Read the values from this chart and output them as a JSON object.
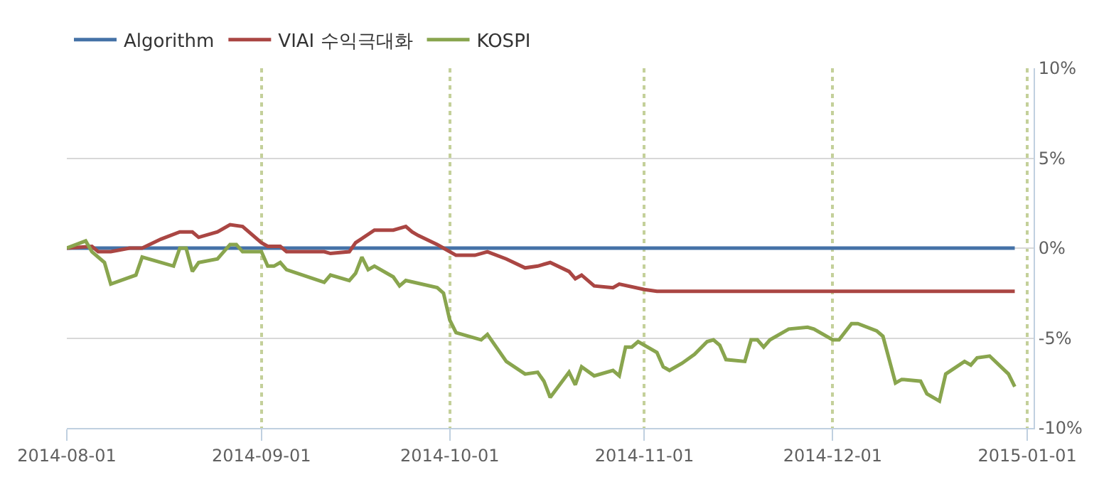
{
  "chart_data": {
    "type": "line",
    "series": [
      {
        "name": "Algorithm",
        "color": "#4572a7",
        "x": [
          "2014-08-01",
          "2014-12-30"
        ],
        "values": [
          0,
          0
        ]
      },
      {
        "name": "VIAI 수익극대화",
        "color": "#aa4643",
        "x": [
          "2014-08-01",
          "2014-08-05",
          "2014-08-06",
          "2014-08-08",
          "2014-08-11",
          "2014-08-13",
          "2014-08-16",
          "2014-08-19",
          "2014-08-21",
          "2014-08-22",
          "2014-08-25",
          "2014-08-27",
          "2014-08-29",
          "2014-09-01",
          "2014-09-02",
          "2014-09-04",
          "2014-09-05",
          "2014-09-11",
          "2014-09-12",
          "2014-09-15",
          "2014-09-16",
          "2014-09-19",
          "2014-09-22",
          "2014-09-23",
          "2014-09-24",
          "2014-09-25",
          "2014-09-26",
          "2014-09-29",
          "2014-09-30",
          "2014-10-02",
          "2014-10-05",
          "2014-10-07",
          "2014-10-10",
          "2014-10-13",
          "2014-10-15",
          "2014-10-17",
          "2014-10-20",
          "2014-10-21",
          "2014-10-22",
          "2014-10-24",
          "2014-10-27",
          "2014-10-28",
          "2014-11-01",
          "2014-11-03",
          "2014-12-30"
        ],
        "values": [
          0,
          0.1,
          -0.2,
          -0.2,
          0,
          0,
          0.5,
          0.9,
          0.9,
          0.6,
          0.9,
          1.3,
          1.2,
          0.3,
          0.1,
          0.1,
          -0.2,
          -0.2,
          -0.3,
          -0.2,
          0.3,
          1.0,
          1.0,
          1.1,
          1.2,
          0.9,
          0.7,
          0.2,
          0,
          -0.4,
          -0.4,
          -0.2,
          -0.6,
          -1.1,
          -1.0,
          -0.8,
          -1.3,
          -1.7,
          -1.5,
          -2.1,
          -2.2,
          -2.0,
          -2.3,
          -2.4,
          -2.4
        ]
      },
      {
        "name": "KOSPI",
        "color": "#89a54e",
        "x": [
          "2014-08-01",
          "2014-08-04",
          "2014-08-05",
          "2014-08-07",
          "2014-08-08",
          "2014-08-12",
          "2014-08-13",
          "2014-08-18",
          "2014-08-19",
          "2014-08-20",
          "2014-08-21",
          "2014-08-22",
          "2014-08-25",
          "2014-08-27",
          "2014-08-28",
          "2014-08-29",
          "2014-09-01",
          "2014-09-02",
          "2014-09-03",
          "2014-09-04",
          "2014-09-05",
          "2014-09-11",
          "2014-09-12",
          "2014-09-15",
          "2014-09-16",
          "2014-09-17",
          "2014-09-18",
          "2014-09-19",
          "2014-09-22",
          "2014-09-23",
          "2014-09-24",
          "2014-09-29",
          "2014-09-30",
          "2014-10-01",
          "2014-10-02",
          "2014-10-06",
          "2014-10-07",
          "2014-10-10",
          "2014-10-13",
          "2014-10-15",
          "2014-10-16",
          "2014-10-17",
          "2014-10-20",
          "2014-10-21",
          "2014-10-22",
          "2014-10-24",
          "2014-10-27",
          "2014-10-28",
          "2014-10-29",
          "2014-10-30",
          "2014-10-31",
          "2014-11-03",
          "2014-11-04",
          "2014-11-05",
          "2014-11-07",
          "2014-11-09",
          "2014-11-11",
          "2014-11-12",
          "2014-11-13",
          "2014-11-14",
          "2014-11-17",
          "2014-11-18",
          "2014-11-19",
          "2014-11-20",
          "2014-11-21",
          "2014-11-24",
          "2014-11-27",
          "2014-11-28",
          "2014-12-01",
          "2014-12-02",
          "2014-12-04",
          "2014-12-05",
          "2014-12-08",
          "2014-12-09",
          "2014-12-11",
          "2014-12-12",
          "2014-12-15",
          "2014-12-16",
          "2014-12-18",
          "2014-12-19",
          "2014-12-22",
          "2014-12-23",
          "2014-12-24",
          "2014-12-26",
          "2014-12-29",
          "2014-12-30"
        ],
        "values": [
          0,
          0.4,
          -0.2,
          -0.8,
          -2.0,
          -1.5,
          -0.5,
          -1.0,
          0,
          0,
          -1.3,
          -0.8,
          -0.6,
          0.2,
          0.2,
          -0.2,
          -0.2,
          -1.0,
          -1.0,
          -0.8,
          -1.2,
          -1.9,
          -1.5,
          -1.8,
          -1.4,
          -0.5,
          -1.2,
          -1.0,
          -1.6,
          -2.1,
          -1.8,
          -2.2,
          -2.5,
          -4.0,
          -4.7,
          -5.1,
          -4.8,
          -6.3,
          -7.0,
          -6.9,
          -7.4,
          -8.3,
          -6.9,
          -7.6,
          -6.6,
          -7.1,
          -6.8,
          -7.1,
          -5.5,
          -5.5,
          -5.2,
          -5.8,
          -6.6,
          -6.8,
          -6.4,
          -5.9,
          -5.2,
          -5.1,
          -5.4,
          -6.2,
          -6.3,
          -5.1,
          -5.1,
          -5.5,
          -5.1,
          -4.5,
          -4.4,
          -4.5,
          -5.1,
          -5.1,
          -4.2,
          -4.2,
          -4.6,
          -4.9,
          -7.5,
          -7.3,
          -7.4,
          -8.1,
          -8.5,
          -7.0,
          -6.3,
          -6.5,
          -6.1,
          -6.0,
          -7.0,
          -7.7
        ]
      }
    ],
    "xlim": [
      "2014-08-01",
      "2015-01-02"
    ],
    "xticks": [
      {
        "value": "2014-08-01",
        "label": "2014-08-01"
      },
      {
        "value": "2014-09-01",
        "label": "2014-09-01"
      },
      {
        "value": "2014-10-01",
        "label": "2014-10-01"
      },
      {
        "value": "2014-11-01",
        "label": "2014-11-01"
      },
      {
        "value": "2014-12-01",
        "label": "2014-12-01"
      },
      {
        "value": "2015-01-01",
        "label": "2015-01-01"
      }
    ],
    "ylim": [
      -10,
      10
    ],
    "yticks": [
      {
        "value": 10,
        "label": "10%"
      },
      {
        "value": 5,
        "label": "5%"
      },
      {
        "value": 0,
        "label": "0%"
      },
      {
        "value": -5,
        "label": "-5%"
      },
      {
        "value": -10,
        "label": "-10%"
      }
    ],
    "grid": true,
    "legend": "top left",
    "marker": "none",
    "line_style": "solid"
  }
}
